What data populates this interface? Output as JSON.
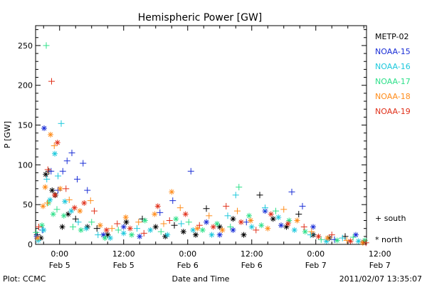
{
  "chart_data": {
    "type": "scatter",
    "title": "Hemispheric Power [GW]",
    "ylabel": "P [GW]",
    "xlabel": "Date and Time",
    "ylim": [
      0,
      275
    ],
    "yticks": [
      0,
      50,
      100,
      150,
      200,
      250
    ],
    "xlim_hours": [
      -4.5,
      57.5
    ],
    "xticks": [
      {
        "time": "0:00",
        "date": "Feb 5",
        "h": 0
      },
      {
        "time": "12:00",
        "date": "Feb 5",
        "h": 12
      },
      {
        "time": "0:00",
        "date": "Feb 6",
        "h": 24
      },
      {
        "time": "12:00",
        "date": "Feb 6",
        "h": 36
      },
      {
        "time": "0:00",
        "date": "Feb 7",
        "h": 48
      },
      {
        "time": "12:00",
        "date": "Feb 7",
        "h": 60
      }
    ],
    "hemisphere_markers": [
      {
        "symbol": "+",
        "label": "south"
      },
      {
        "symbol": "*",
        "label": "north"
      }
    ],
    "series": [
      {
        "name": "METP-02",
        "color": "#000000",
        "points": [
          [
            -4.2,
            12,
            "s"
          ],
          [
            -3.5,
            8,
            "n"
          ],
          [
            -2.6,
            88,
            "n"
          ],
          [
            -2.0,
            92,
            "s"
          ],
          [
            -1.4,
            68,
            "n"
          ],
          [
            -0.8,
            62,
            "n"
          ],
          [
            0.5,
            22,
            "n"
          ],
          [
            1.6,
            38,
            "n"
          ],
          [
            3.0,
            32,
            "s"
          ],
          [
            5.2,
            22,
            "n"
          ],
          [
            7.0,
            20,
            "s"
          ],
          [
            9.0,
            12,
            "n"
          ],
          [
            12.5,
            28,
            "n"
          ],
          [
            15.5,
            32,
            "s"
          ],
          [
            18.0,
            22,
            "n"
          ],
          [
            19.8,
            10,
            "n"
          ],
          [
            21.5,
            24,
            "s"
          ],
          [
            23.2,
            16,
            "n"
          ],
          [
            25.5,
            12,
            "n"
          ],
          [
            27.5,
            45,
            "s"
          ],
          [
            30.0,
            22,
            "n"
          ],
          [
            32.5,
            32,
            "n"
          ],
          [
            34.5,
            12,
            "n"
          ],
          [
            37.5,
            62,
            "s"
          ],
          [
            40.0,
            32,
            "n"
          ],
          [
            42.5,
            22,
            "n"
          ],
          [
            44.8,
            38,
            "s"
          ],
          [
            47.5,
            12,
            "n"
          ],
          [
            50.5,
            8,
            "n"
          ],
          [
            53.5,
            10,
            "s"
          ],
          [
            57.0,
            3,
            "n"
          ]
        ]
      },
      {
        "name": "NOAA-15",
        "color": "#1a2ed6",
        "points": [
          [
            -4.3,
            10,
            "n"
          ],
          [
            -3.2,
            18,
            "s"
          ],
          [
            -2.9,
            146,
            "n"
          ],
          [
            -1.6,
            92,
            "s"
          ],
          [
            -0.3,
            68,
            "s"
          ],
          [
            0.6,
            92,
            "s"
          ],
          [
            1.4,
            105,
            "s"
          ],
          [
            2.3,
            115,
            "s"
          ],
          [
            3.3,
            82,
            "s"
          ],
          [
            4.4,
            102,
            "s"
          ],
          [
            5.2,
            68,
            "s"
          ],
          [
            8.2,
            12,
            "n"
          ],
          [
            12.0,
            22,
            "n"
          ],
          [
            15.0,
            10,
            "n"
          ],
          [
            18.8,
            40,
            "s"
          ],
          [
            21.2,
            55,
            "s"
          ],
          [
            24.6,
            92,
            "s"
          ],
          [
            27.5,
            28,
            "n"
          ],
          [
            30.0,
            12,
            "n"
          ],
          [
            32.5,
            18,
            "n"
          ],
          [
            35.0,
            28,
            "s"
          ],
          [
            38.5,
            42,
            "n"
          ],
          [
            41.5,
            24,
            "n"
          ],
          [
            43.5,
            66,
            "s"
          ],
          [
            45.5,
            48,
            "s"
          ],
          [
            47.5,
            22,
            "n"
          ],
          [
            51.5,
            6,
            "s"
          ],
          [
            55.5,
            12,
            "n"
          ]
        ]
      },
      {
        "name": "NOAA-16",
        "color": "#1cc8dc",
        "points": [
          [
            -4.0,
            5,
            "n"
          ],
          [
            -3.0,
            18,
            "n"
          ],
          [
            -2.4,
            82,
            "s"
          ],
          [
            -1.8,
            56,
            "n"
          ],
          [
            -0.9,
            114,
            "n"
          ],
          [
            -0.3,
            86,
            "s"
          ],
          [
            0.3,
            152,
            "s"
          ],
          [
            1.0,
            54,
            "n"
          ],
          [
            2.2,
            42,
            "n"
          ],
          [
            3.5,
            28,
            "s"
          ],
          [
            5.0,
            20,
            "n"
          ],
          [
            7.2,
            12,
            "s"
          ],
          [
            9.5,
            8,
            "n"
          ],
          [
            12.0,
            14,
            "n"
          ],
          [
            14.5,
            20,
            "s"
          ],
          [
            17.0,
            18,
            "n"
          ],
          [
            20.2,
            12,
            "n"
          ],
          [
            22.8,
            26,
            "s"
          ],
          [
            25.0,
            18,
            "n"
          ],
          [
            28.5,
            12,
            "n"
          ],
          [
            31.5,
            36,
            "s"
          ],
          [
            33.0,
            62,
            "s"
          ],
          [
            36.0,
            22,
            "n"
          ],
          [
            38.5,
            46,
            "s"
          ],
          [
            41.0,
            34,
            "n"
          ],
          [
            44.0,
            18,
            "n"
          ],
          [
            47.0,
            12,
            "s"
          ],
          [
            50.0,
            4,
            "n"
          ],
          [
            53.0,
            8,
            "s"
          ],
          [
            56.0,
            4,
            "n"
          ]
        ]
      },
      {
        "name": "NOAA-17",
        "color": "#2ee08a",
        "points": [
          [
            -4.4,
            15,
            "s"
          ],
          [
            -3.3,
            24,
            "n"
          ],
          [
            -2.5,
            250,
            "s"
          ],
          [
            -2.1,
            52,
            "n"
          ],
          [
            -1.2,
            38,
            "n"
          ],
          [
            -0.5,
            44,
            "s"
          ],
          [
            0.8,
            36,
            "n"
          ],
          [
            2.5,
            22,
            "s"
          ],
          [
            4.0,
            18,
            "n"
          ],
          [
            6.0,
            28,
            "s"
          ],
          [
            8.5,
            8,
            "n"
          ],
          [
            11.0,
            18,
            "s"
          ],
          [
            13.5,
            12,
            "n"
          ],
          [
            16.0,
            30,
            "n"
          ],
          [
            19.0,
            16,
            "s"
          ],
          [
            21.8,
            32,
            "n"
          ],
          [
            24.2,
            28,
            "s"
          ],
          [
            26.8,
            18,
            "n"
          ],
          [
            29.5,
            26,
            "n"
          ],
          [
            32.0,
            22,
            "s"
          ],
          [
            33.6,
            72,
            "s"
          ],
          [
            35.5,
            36,
            "n"
          ],
          [
            37.8,
            24,
            "n"
          ],
          [
            40.5,
            42,
            "s"
          ],
          [
            43.0,
            30,
            "n"
          ],
          [
            46.0,
            16,
            "n"
          ],
          [
            49.0,
            6,
            "s"
          ],
          [
            52.0,
            5,
            "n"
          ],
          [
            55.0,
            9,
            "s"
          ],
          [
            57.2,
            5,
            "n"
          ]
        ]
      },
      {
        "name": "NOAA-18",
        "color": "#ff8c1a",
        "points": [
          [
            -4.1,
            8,
            "n"
          ],
          [
            -3.1,
            48,
            "n"
          ],
          [
            -2.7,
            72,
            "n"
          ],
          [
            -2.3,
            52,
            "s"
          ],
          [
            -1.7,
            138,
            "n"
          ],
          [
            -1.0,
            124,
            "s"
          ],
          [
            0.1,
            70,
            "n"
          ],
          [
            1.8,
            56,
            "s"
          ],
          [
            3.8,
            42,
            "n"
          ],
          [
            5.8,
            55,
            "s"
          ],
          [
            7.6,
            24,
            "n"
          ],
          [
            9.8,
            20,
            "s"
          ],
          [
            12.4,
            34,
            "n"
          ],
          [
            14.8,
            28,
            "s"
          ],
          [
            17.8,
            38,
            "n"
          ],
          [
            19.5,
            26,
            "s"
          ],
          [
            21.0,
            66,
            "n"
          ],
          [
            22.6,
            46,
            "s"
          ],
          [
            25.8,
            20,
            "n"
          ],
          [
            28.0,
            36,
            "s"
          ],
          [
            30.5,
            18,
            "n"
          ],
          [
            33.3,
            42,
            "s"
          ],
          [
            35.8,
            30,
            "n"
          ],
          [
            39.0,
            20,
            "n"
          ],
          [
            42.0,
            44,
            "s"
          ],
          [
            44.5,
            30,
            "n"
          ],
          [
            47.2,
            16,
            "s"
          ],
          [
            50.2,
            8,
            "n"
          ],
          [
            53.8,
            5,
            "s"
          ],
          [
            56.8,
            2,
            "n"
          ]
        ]
      },
      {
        "name": "NOAA-19",
        "color": "#e0301a",
        "points": [
          [
            -3.9,
            22,
            "s"
          ],
          [
            -2.2,
            94,
            "s"
          ],
          [
            -1.5,
            205,
            "s"
          ],
          [
            -0.9,
            62,
            "n"
          ],
          [
            -0.4,
            128,
            "n"
          ],
          [
            1.2,
            70,
            "s"
          ],
          [
            2.8,
            46,
            "n"
          ],
          [
            4.6,
            52,
            "n"
          ],
          [
            6.5,
            42,
            "s"
          ],
          [
            8.8,
            18,
            "n"
          ],
          [
            10.8,
            26,
            "s"
          ],
          [
            13.2,
            20,
            "n"
          ],
          [
            15.8,
            14,
            "s"
          ],
          [
            18.4,
            48,
            "n"
          ],
          [
            20.6,
            30,
            "s"
          ],
          [
            23.6,
            38,
            "n"
          ],
          [
            26.2,
            24,
            "s"
          ],
          [
            28.8,
            22,
            "n"
          ],
          [
            31.2,
            48,
            "s"
          ],
          [
            34.0,
            28,
            "n"
          ],
          [
            36.8,
            18,
            "s"
          ],
          [
            39.6,
            38,
            "n"
          ],
          [
            42.8,
            26,
            "n"
          ],
          [
            45.8,
            22,
            "s"
          ],
          [
            48.5,
            10,
            "n"
          ],
          [
            51.0,
            12,
            "s"
          ],
          [
            54.5,
            4,
            "n"
          ],
          [
            57.4,
            2,
            "s"
          ]
        ]
      }
    ]
  },
  "footer": {
    "left": "Plot: CCMC",
    "right": "2011/02/07 13:35:07"
  }
}
